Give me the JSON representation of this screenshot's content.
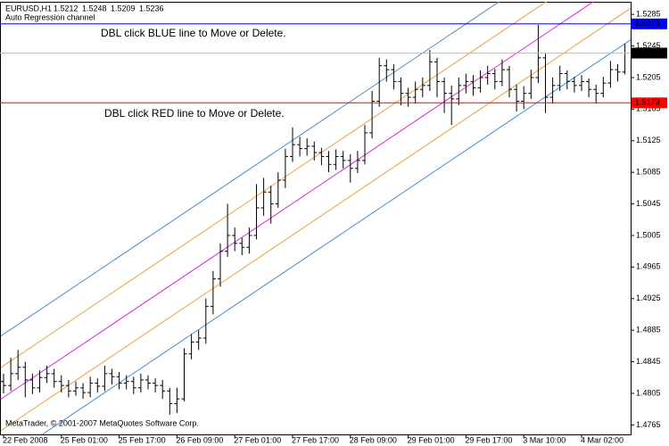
{
  "chart_data": {
    "type": "ohlc",
    "symbol": "EURUSD,H1",
    "subtitle": "Auto Regression channel",
    "annotations": [
      {
        "text": "DBL click BLUE line to Move or Delete.",
        "color": "#3a8ee0"
      },
      {
        "text": "DBL click RED line to Move or Delete.",
        "color": "#e0309a"
      }
    ],
    "footer": "MetaTrader, © 2001-2007 MetaQuotes Software Corp.",
    "categories": [
      "22 Feb 2008",
      null,
      null,
      null,
      null,
      null,
      null,
      null,
      "25 Feb 01:00",
      null,
      null,
      null,
      null,
      null,
      null,
      null,
      "25 Feb 17:00",
      null,
      null,
      null,
      null,
      null,
      null,
      null,
      "26 Feb 09:00",
      null,
      null,
      null,
      null,
      null,
      null,
      null,
      "27 Feb 01:00",
      null,
      null,
      null,
      null,
      null,
      null,
      null,
      "27 Feb 17:00",
      null,
      null,
      null,
      null,
      null,
      null,
      null,
      "28 Feb 09:00",
      null,
      null,
      null,
      null,
      null,
      null,
      null,
      "29 Feb 01:00",
      null,
      null,
      null,
      null,
      null,
      null,
      null,
      "29 Feb 17:00",
      null,
      null,
      null,
      null,
      null,
      null,
      null,
      "3 Mar 10:00",
      null,
      null,
      null,
      null,
      null,
      null,
      null,
      "4 Mar 02:00",
      null,
      null,
      null,
      null,
      null,
      null
    ],
    "open": [
      1.482,
      1.4815,
      1.483,
      1.4838,
      1.4822,
      1.4812,
      1.4825,
      1.483,
      1.482,
      1.4815,
      1.4808,
      1.4812,
      1.4806,
      1.4818,
      1.4814,
      1.483,
      1.4826,
      1.4818,
      1.482,
      1.4812,
      1.4822,
      1.4818,
      1.4815,
      1.4808,
      1.4792,
      1.4798,
      1.4855,
      1.487,
      1.4875,
      1.4915,
      1.495,
      1.4985,
      1.5005,
      1.4995,
      1.499,
      1.5005,
      1.504,
      1.506,
      1.5045,
      1.5075,
      1.5105,
      1.512,
      1.5115,
      1.5118,
      1.511,
      1.5105,
      1.5095,
      1.5105,
      1.51,
      1.509,
      1.51,
      1.5135,
      1.5175,
      1.522,
      1.5215,
      1.52,
      1.5185,
      1.518,
      1.519,
      1.5195,
      1.5225,
      1.52,
      1.5185,
      1.5178,
      1.5195,
      1.52,
      1.5192,
      1.5205,
      1.521,
      1.52,
      1.5215,
      1.519,
      1.5175,
      1.5185,
      1.5205,
      1.523,
      1.518,
      1.5195,
      1.521,
      1.52,
      1.5195,
      1.52,
      1.519,
      1.5185,
      1.5198,
      1.5215,
      1.5212
    ],
    "high": [
      1.483,
      1.485,
      1.486,
      1.4845,
      1.483,
      1.4834,
      1.484,
      1.4836,
      1.4828,
      1.4822,
      1.482,
      1.4818,
      1.4826,
      1.4824,
      1.484,
      1.4836,
      1.4832,
      1.4828,
      1.4826,
      1.483,
      1.4828,
      1.4824,
      1.4822,
      1.4812,
      1.4812,
      1.4862,
      1.488,
      1.4885,
      1.4925,
      1.496,
      1.4995,
      1.5045,
      1.5015,
      1.5002,
      1.5015,
      1.507,
      1.5078,
      1.5068,
      1.5085,
      1.5115,
      1.5142,
      1.513,
      1.5128,
      1.5124,
      1.5116,
      1.5112,
      1.5114,
      1.5112,
      1.5108,
      1.5112,
      1.5145,
      1.5188,
      1.523,
      1.5228,
      1.5222,
      1.5205,
      1.5192,
      1.52,
      1.5205,
      1.524,
      1.523,
      1.5205,
      1.5195,
      1.5205,
      1.521,
      1.5208,
      1.5214,
      1.522,
      1.5216,
      1.5228,
      1.522,
      1.5196,
      1.5194,
      1.5215,
      1.5272,
      1.5235,
      1.5205,
      1.522,
      1.5214,
      1.5206,
      1.5208,
      1.5204,
      1.5196,
      1.5206,
      1.5226,
      1.5222,
      1.5248
    ],
    "low": [
      1.4805,
      1.4808,
      1.4822,
      1.48,
      1.4804,
      1.4806,
      1.4818,
      1.4812,
      1.4806,
      1.48,
      1.4802,
      1.4798,
      1.48,
      1.4806,
      1.4808,
      1.4816,
      1.481,
      1.481,
      1.4804,
      1.4806,
      1.481,
      1.4806,
      1.4798,
      1.4778,
      1.478,
      1.4795,
      1.4848,
      1.486,
      1.4868,
      1.4905,
      1.494,
      1.4978,
      1.4985,
      1.498,
      1.4982,
      1.5,
      1.503,
      1.502,
      1.504,
      1.5065,
      1.5098,
      1.5105,
      1.5106,
      1.51,
      1.5094,
      1.5085,
      1.5088,
      1.509,
      1.5072,
      1.5084,
      1.5095,
      1.5128,
      1.5168,
      1.52,
      1.519,
      1.517,
      1.5168,
      1.5172,
      1.518,
      1.5188,
      1.518,
      1.516,
      1.5145,
      1.517,
      1.5185,
      1.5182,
      1.5186,
      1.5196,
      1.519,
      1.5194,
      1.518,
      1.5162,
      1.5165,
      1.5178,
      1.5198,
      1.516,
      1.5172,
      1.5188,
      1.519,
      1.5186,
      1.5188,
      1.518,
      1.5172,
      1.518,
      1.5192,
      1.52,
      1.5209
    ],
    "close": [
      1.4815,
      1.483,
      1.4838,
      1.4822,
      1.4812,
      1.4825,
      1.483,
      1.482,
      1.4815,
      1.4808,
      1.4812,
      1.4806,
      1.4818,
      1.4814,
      1.483,
      1.4826,
      1.4818,
      1.482,
      1.4812,
      1.4822,
      1.4818,
      1.4815,
      1.4808,
      1.4792,
      1.4798,
      1.4855,
      1.487,
      1.4875,
      1.4915,
      1.495,
      1.4985,
      1.5005,
      1.4995,
      1.499,
      1.5005,
      1.504,
      1.506,
      1.5045,
      1.5075,
      1.5105,
      1.512,
      1.5115,
      1.5118,
      1.511,
      1.5105,
      1.5095,
      1.5105,
      1.51,
      1.509,
      1.51,
      1.5135,
      1.5175,
      1.522,
      1.5215,
      1.52,
      1.5185,
      1.518,
      1.519,
      1.5195,
      1.5225,
      1.52,
      1.5185,
      1.5178,
      1.5195,
      1.52,
      1.5192,
      1.5205,
      1.521,
      1.52,
      1.5215,
      1.519,
      1.5175,
      1.5185,
      1.5205,
      1.523,
      1.518,
      1.5195,
      1.521,
      1.52,
      1.5195,
      1.52,
      1.519,
      1.5185,
      1.5198,
      1.5215,
      1.5212,
      1.5236
    ],
    "color": "#000000",
    "bid_color": "#c0c0c0",
    "hlines": [
      {
        "value": 1.5273,
        "color": "#0000ff"
      },
      {
        "value": 1.5173,
        "color": "#ff0000"
      }
    ],
    "channel": {
      "start": 1.48,
      "end": 1.5328,
      "center_color": "#e020e0",
      "inner": 0.004,
      "inner_color": "#e8a33d",
      "outer": 0.008,
      "outer_color": "#4a8ccc"
    },
    "ylim": [
      1.4753,
      1.5301
    ],
    "yticks": [
      1.5285,
      1.5245,
      1.5205,
      1.5165,
      1.5125,
      1.5085,
      1.5045,
      1.5005,
      1.4965,
      1.4925,
      1.4885,
      1.4845,
      1.4805,
      1.4765
    ]
  }
}
